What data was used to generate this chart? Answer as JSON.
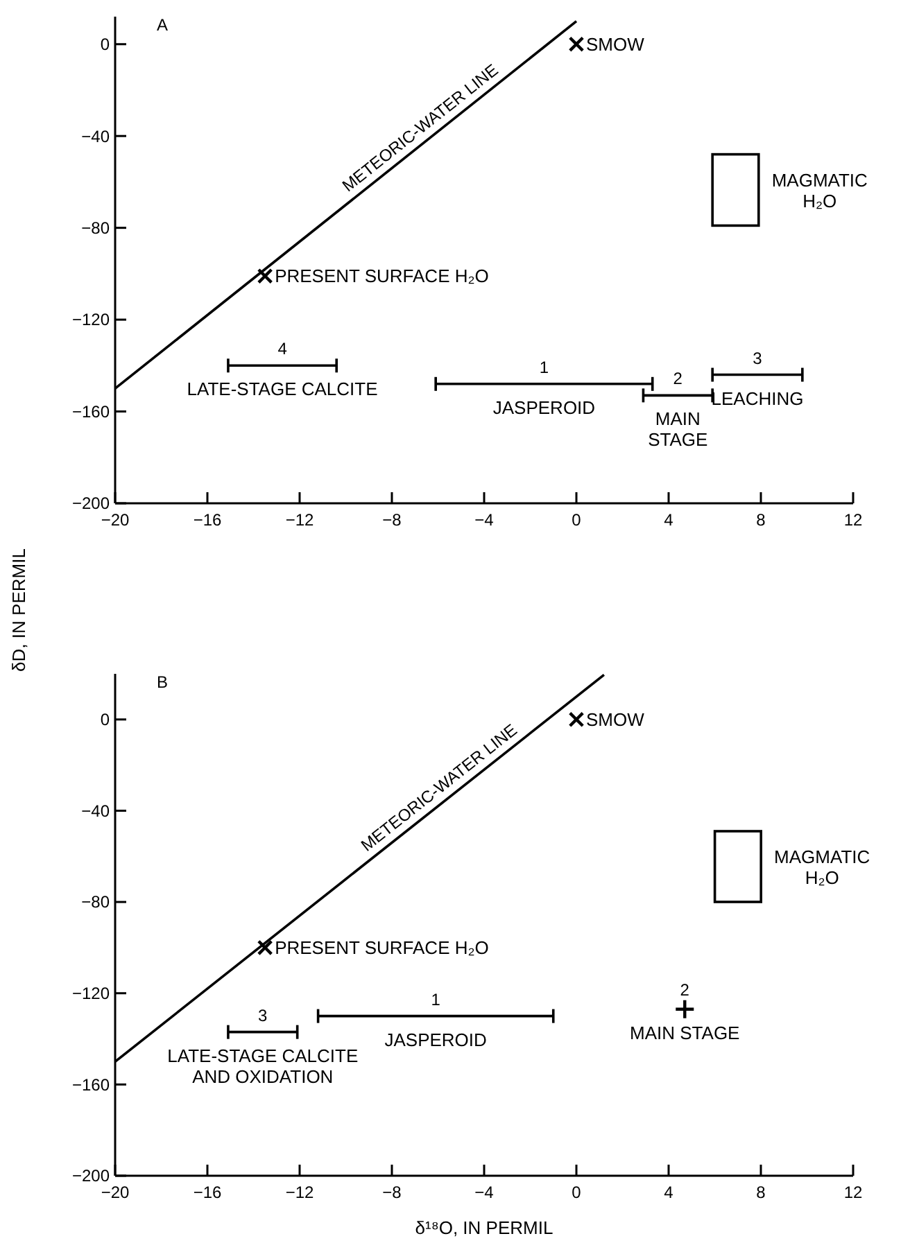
{
  "chart_data": [
    {
      "type": "scatter",
      "title": "A",
      "ylabel": "δD, IN PERMIL",
      "xlim": [
        -20,
        12
      ],
      "ylim": [
        -200,
        12
      ],
      "xticks": [
        -20,
        -16,
        -12,
        -8,
        -4,
        0,
        4,
        8,
        12
      ],
      "yticks": [
        -200,
        -160,
        -120,
        -80,
        -40,
        0
      ],
      "series": [
        {
          "name": "METEORIC-WATER LINE",
          "type": "line",
          "color": "#000000",
          "x": [
            -20,
            0
          ],
          "values": [
            -150,
            10
          ]
        },
        {
          "name": "SMOW",
          "marker": "cross",
          "color": "#000000",
          "x": [
            0
          ],
          "values": [
            0
          ]
        },
        {
          "name": "PRESENT SURFACE H₂O",
          "marker": "cross",
          "color": "#000000",
          "x": [
            -13.5
          ],
          "values": [
            -101
          ]
        },
        {
          "name": "4",
          "type": "line",
          "color": "#000000",
          "x": [
            -15.1,
            -10.4
          ],
          "values": [
            -140,
            -140
          ]
        },
        {
          "name": "1",
          "type": "line",
          "color": "#000000",
          "x": [
            -6.1,
            3.3
          ],
          "values": [
            -148,
            -148
          ]
        },
        {
          "name": "2",
          "type": "line",
          "color": "#000000",
          "x": [
            2.9,
            5.9
          ],
          "values": [
            -153,
            -153
          ]
        },
        {
          "name": "3",
          "type": "line",
          "color": "#000000",
          "x": [
            5.9,
            9.8
          ],
          "values": [
            -144,
            -144
          ]
        }
      ],
      "annotations": [
        "MAGMATIC\nH₂O",
        {
          "text": "LATE-STAGE CALCITE",
          "x": -12.75,
          "y": -140
        },
        {
          "text": "JASPEROID",
          "x": -1.4,
          "y": -148
        },
        {
          "text": "MAIN\nSTAGE",
          "x": 4.4,
          "y": -153
        },
        {
          "text": "LEACHING",
          "x": 7.85,
          "y": -144
        }
      ]
    },
    {
      "type": "scatter",
      "title": "B",
      "xlabel": "δ¹⁸O, IN PERMIL",
      "xlim": [
        -20,
        12
      ],
      "ylim": [
        -200,
        20
      ],
      "xticks": [
        -20,
        -16,
        -12,
        -8,
        -4,
        0,
        4,
        8,
        12
      ],
      "yticks": [
        -200,
        -160,
        -120,
        -80,
        -40,
        0
      ],
      "series": [
        {
          "name": "METEORIC-WATER LINE",
          "type": "line",
          "color": "#000000",
          "x": [
            -20,
            1.2
          ],
          "values": [
            -150,
            19.6
          ]
        },
        {
          "name": "SMOW",
          "marker": "cross",
          "color": "#000000",
          "x": [
            0
          ],
          "values": [
            0
          ]
        },
        {
          "name": "PRESENT SURFACE H₂O",
          "marker": "cross",
          "color": "#000000",
          "x": [
            -13.5
          ],
          "values": [
            -100
          ]
        },
        {
          "name": "3",
          "type": "line",
          "color": "#000000",
          "x": [
            -15.1,
            -12.1
          ],
          "values": [
            -137,
            -137
          ]
        },
        {
          "name": "1",
          "type": "line",
          "color": "#000000",
          "x": [
            -11.2,
            -1.0
          ],
          "values": [
            -130,
            -130
          ]
        },
        {
          "name": "2",
          "marker": "plus",
          "color": "#000000",
          "x": [
            4.7
          ],
          "values": [
            -127
          ]
        }
      ],
      "annotations": [
        "MAGMATIC\nH₂O",
        {
          "text": "LATE-STAGE CALCITE\nAND OXIDATION",
          "x": -13.6,
          "y": -137
        },
        {
          "text": "JASPEROID",
          "x": -6.1,
          "y": -130
        },
        {
          "text": "MAIN  STAGE",
          "x": 4.7,
          "y": -127
        }
      ]
    }
  ]
}
